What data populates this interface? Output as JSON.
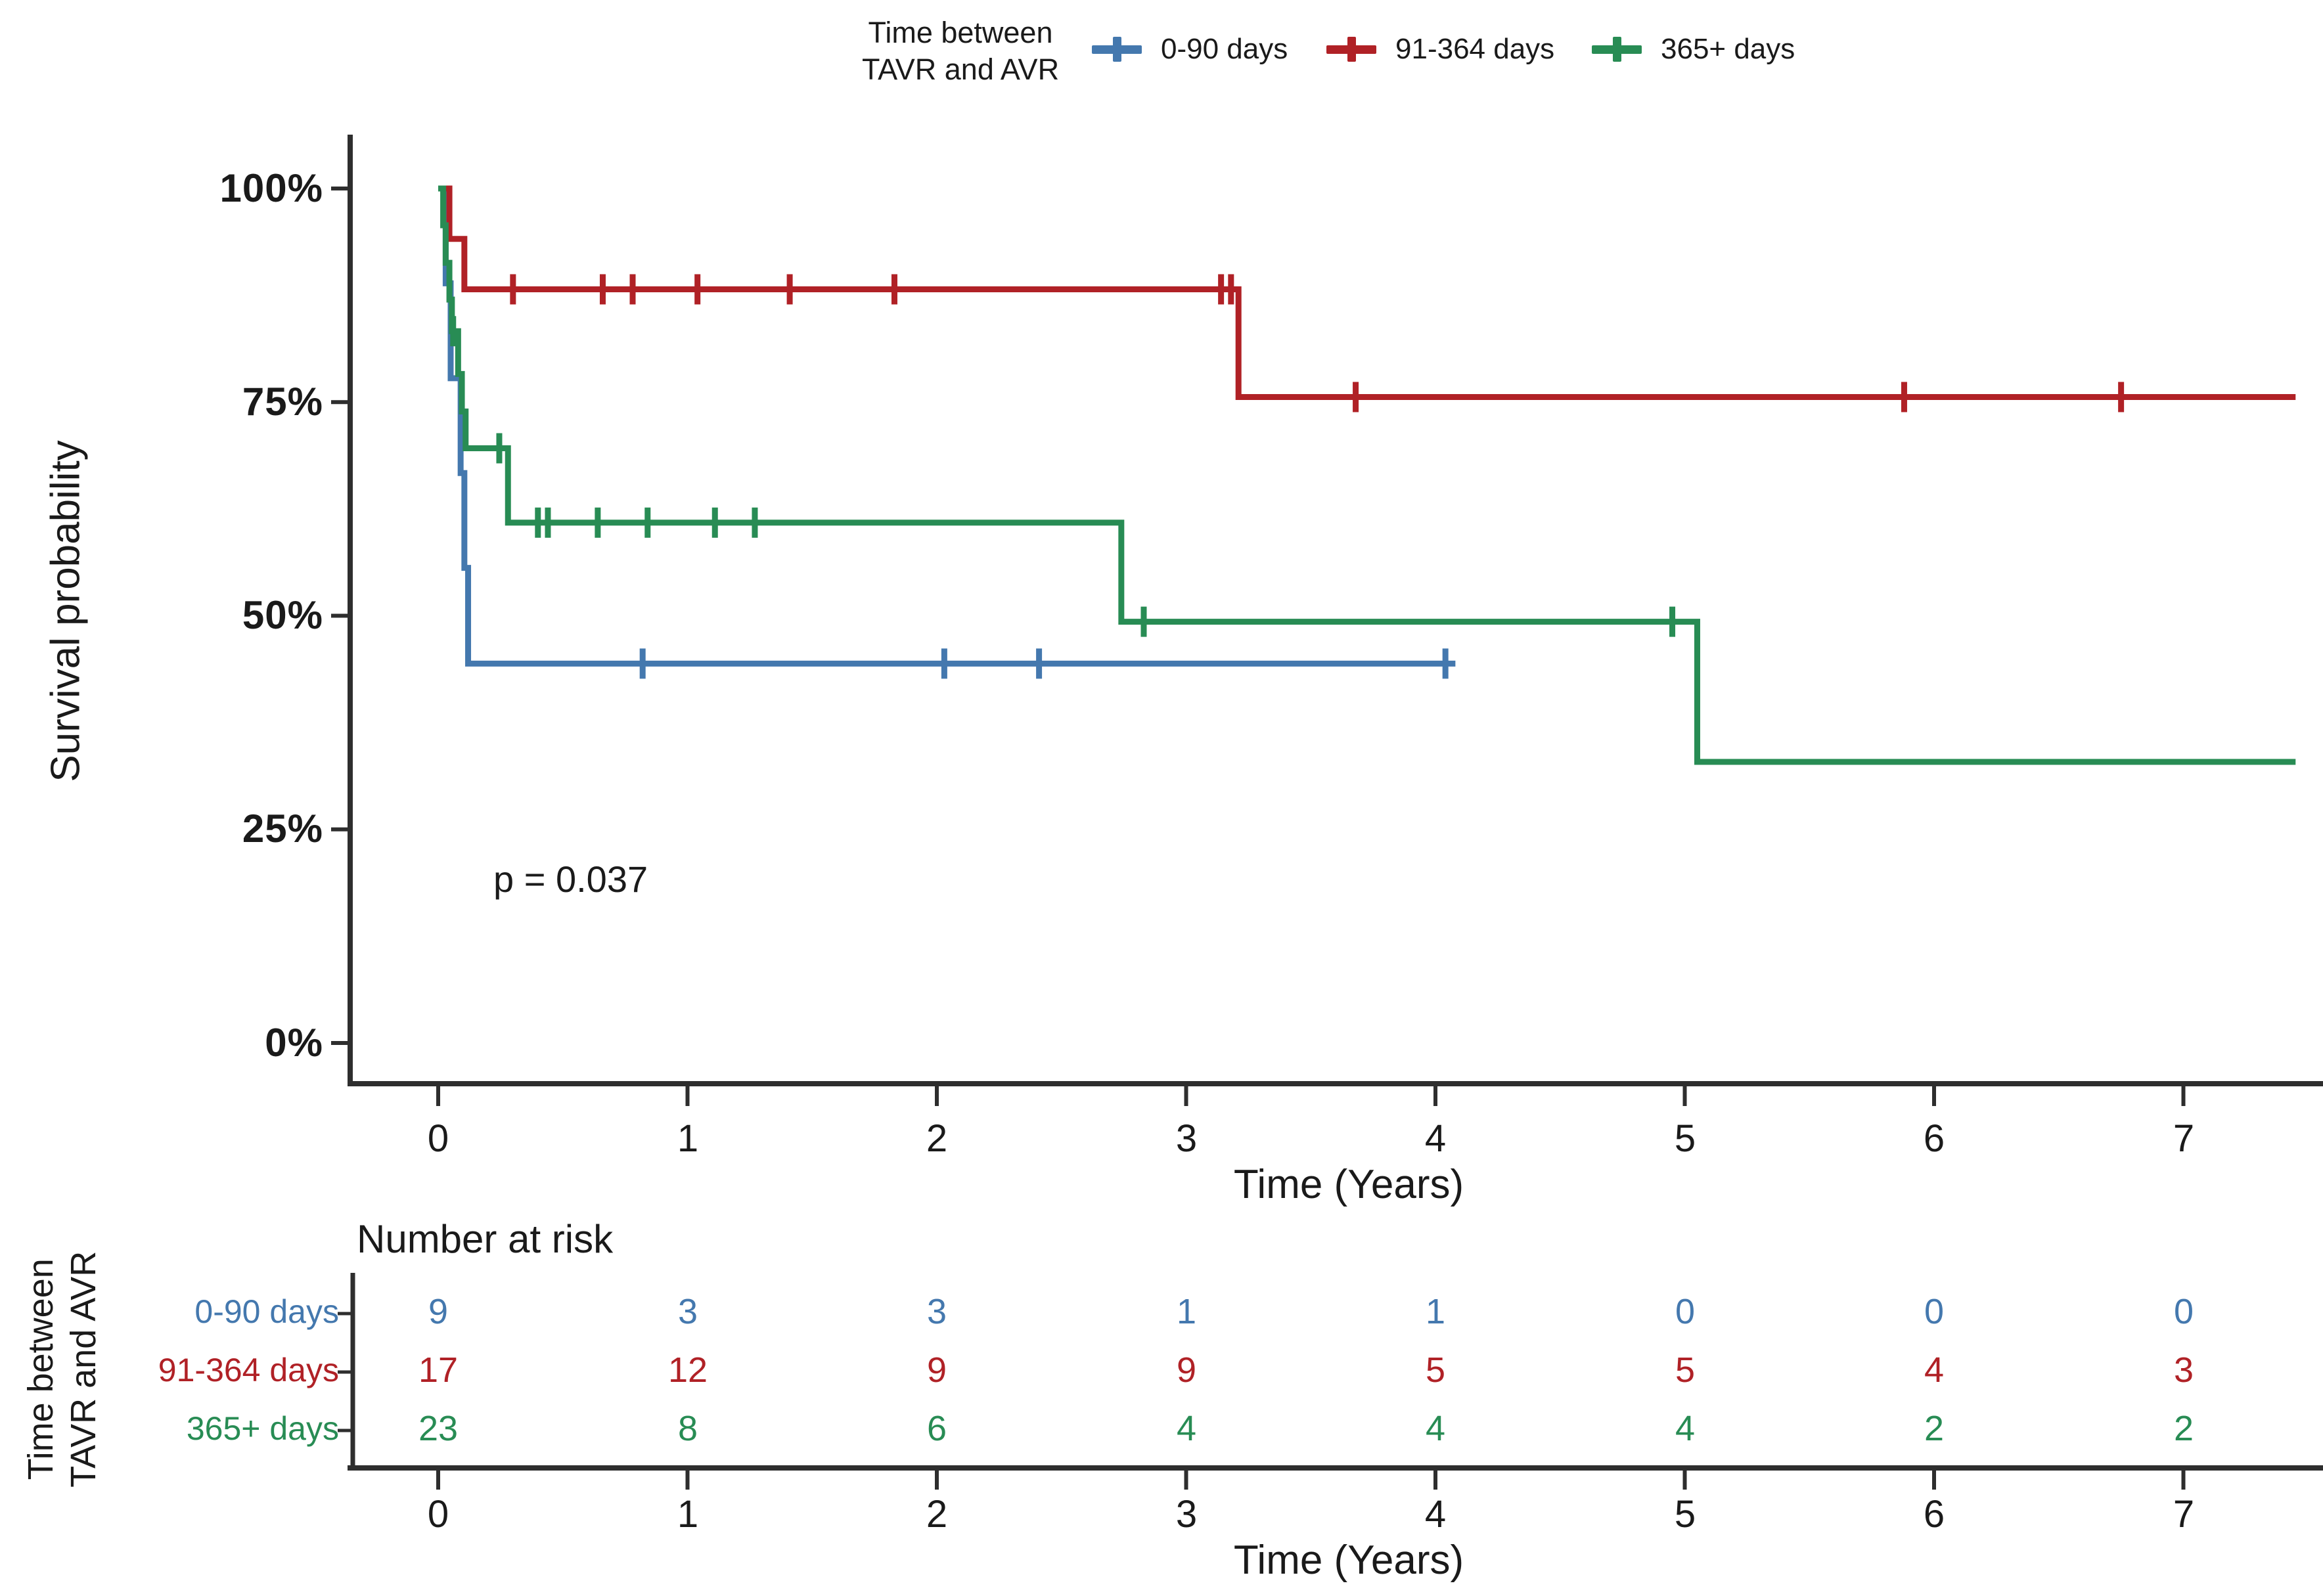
{
  "figure": {
    "background": "#ffffff",
    "text_color": "#1a1a1a",
    "axis_color": "#2e2e2e"
  },
  "legend": {
    "title_line1": "Time between",
    "title_line2": "TAVR and AVR",
    "items": [
      {
        "label": "0-90 days",
        "color": "#4478ae"
      },
      {
        "label": "91-364 days",
        "color": "#b02126"
      },
      {
        "label": "365+ days",
        "color": "#288c54"
      }
    ]
  },
  "axes": {
    "y_title": "Survival probability",
    "x_title": "Time (Years)",
    "y_ticks": [
      "100%",
      "75%",
      "50%",
      "25%",
      "0%"
    ],
    "x_ticks": [
      "0",
      "1",
      "2",
      "3",
      "4",
      "5",
      "6",
      "7"
    ]
  },
  "annotation": {
    "p_value": "p = 0.037"
  },
  "risk_table": {
    "title": "Number at risk",
    "axis_label": "Time (Years)",
    "group_axis_line1": "Time between",
    "group_axis_line2": "TAVR and AVR",
    "x_ticks": [
      "0",
      "1",
      "2",
      "3",
      "4",
      "5",
      "6",
      "7"
    ],
    "rows": [
      {
        "label": "0-90 days",
        "color": "#4478ae",
        "counts": [
          "9",
          "3",
          "3",
          "1",
          "1",
          "0",
          "0",
          "0"
        ]
      },
      {
        "label": "91-364 days",
        "color": "#b02126",
        "counts": [
          "17",
          "12",
          "9",
          "9",
          "5",
          "5",
          "4",
          "3"
        ]
      },
      {
        "label": "365+ days",
        "color": "#288c54",
        "counts": [
          "23",
          "8",
          "6",
          "4",
          "4",
          "4",
          "2",
          "2"
        ]
      }
    ]
  },
  "chart_data": {
    "type": "line",
    "subtype": "kaplan-meier-step",
    "title": "",
    "xlabel": "Time (Years)",
    "ylabel": "Survival probability",
    "xlim": [
      -0.35,
      7.55
    ],
    "ylim": [
      0,
      100
    ],
    "grid": false,
    "legend_position": "top",
    "p_value": 0.037,
    "series": [
      {
        "name": "0-90 days",
        "color": "#4478ae",
        "steps": [
          [
            0,
            100
          ],
          [
            0.03,
            88.9
          ],
          [
            0.05,
            77.8
          ],
          [
            0.09,
            66.7
          ],
          [
            0.105,
            55.6
          ],
          [
            0.12,
            44.4
          ],
          [
            4.08,
            44.4
          ]
        ],
        "censors": [
          [
            0.82,
            44.4
          ],
          [
            2.03,
            44.4
          ],
          [
            2.41,
            44.4
          ],
          [
            4.04,
            44.4
          ]
        ]
      },
      {
        "name": "91-364 days",
        "color": "#b02126",
        "steps": [
          [
            0,
            100
          ],
          [
            0.045,
            94.1
          ],
          [
            0.105,
            88.2
          ],
          [
            3.21,
            75.6
          ],
          [
            7.45,
            75.6
          ]
        ],
        "censors": [
          [
            0.3,
            88.2
          ],
          [
            0.66,
            88.2
          ],
          [
            0.78,
            88.2
          ],
          [
            1.04,
            88.2
          ],
          [
            1.41,
            88.2
          ],
          [
            1.83,
            88.2
          ],
          [
            3.14,
            88.2
          ],
          [
            3.18,
            88.2
          ],
          [
            3.68,
            75.6
          ],
          [
            5.88,
            75.6
          ],
          [
            6.75,
            75.6
          ]
        ]
      },
      {
        "name": "365+ days",
        "color": "#288c54",
        "steps": [
          [
            0,
            100
          ],
          [
            0.02,
            95.7
          ],
          [
            0.03,
            91.3
          ],
          [
            0.045,
            87.0
          ],
          [
            0.055,
            83.3
          ],
          [
            0.08,
            78.3
          ],
          [
            0.095,
            73.9
          ],
          [
            0.11,
            69.6
          ],
          [
            0.28,
            60.9
          ],
          [
            2.74,
            49.3
          ],
          [
            5.05,
            32.9
          ],
          [
            7.45,
            32.9
          ]
        ],
        "censors": [
          [
            0.06,
            83.3
          ],
          [
            0.245,
            69.6
          ],
          [
            0.4,
            60.9
          ],
          [
            0.44,
            60.9
          ],
          [
            0.64,
            60.9
          ],
          [
            0.84,
            60.9
          ],
          [
            1.11,
            60.9
          ],
          [
            1.27,
            60.9
          ],
          [
            2.83,
            49.3
          ],
          [
            4.95,
            49.3
          ]
        ]
      }
    ],
    "number_at_risk": {
      "times": [
        0,
        1,
        2,
        3,
        4,
        5,
        6,
        7
      ],
      "groups": [
        {
          "name": "0-90 days",
          "counts": [
            9,
            3,
            3,
            1,
            1,
            0,
            0,
            0
          ]
        },
        {
          "name": "91-364 days",
          "counts": [
            17,
            12,
            9,
            9,
            5,
            5,
            4,
            3
          ]
        },
        {
          "name": "365+ days",
          "counts": [
            23,
            8,
            6,
            4,
            4,
            4,
            2,
            2
          ]
        }
      ]
    }
  }
}
